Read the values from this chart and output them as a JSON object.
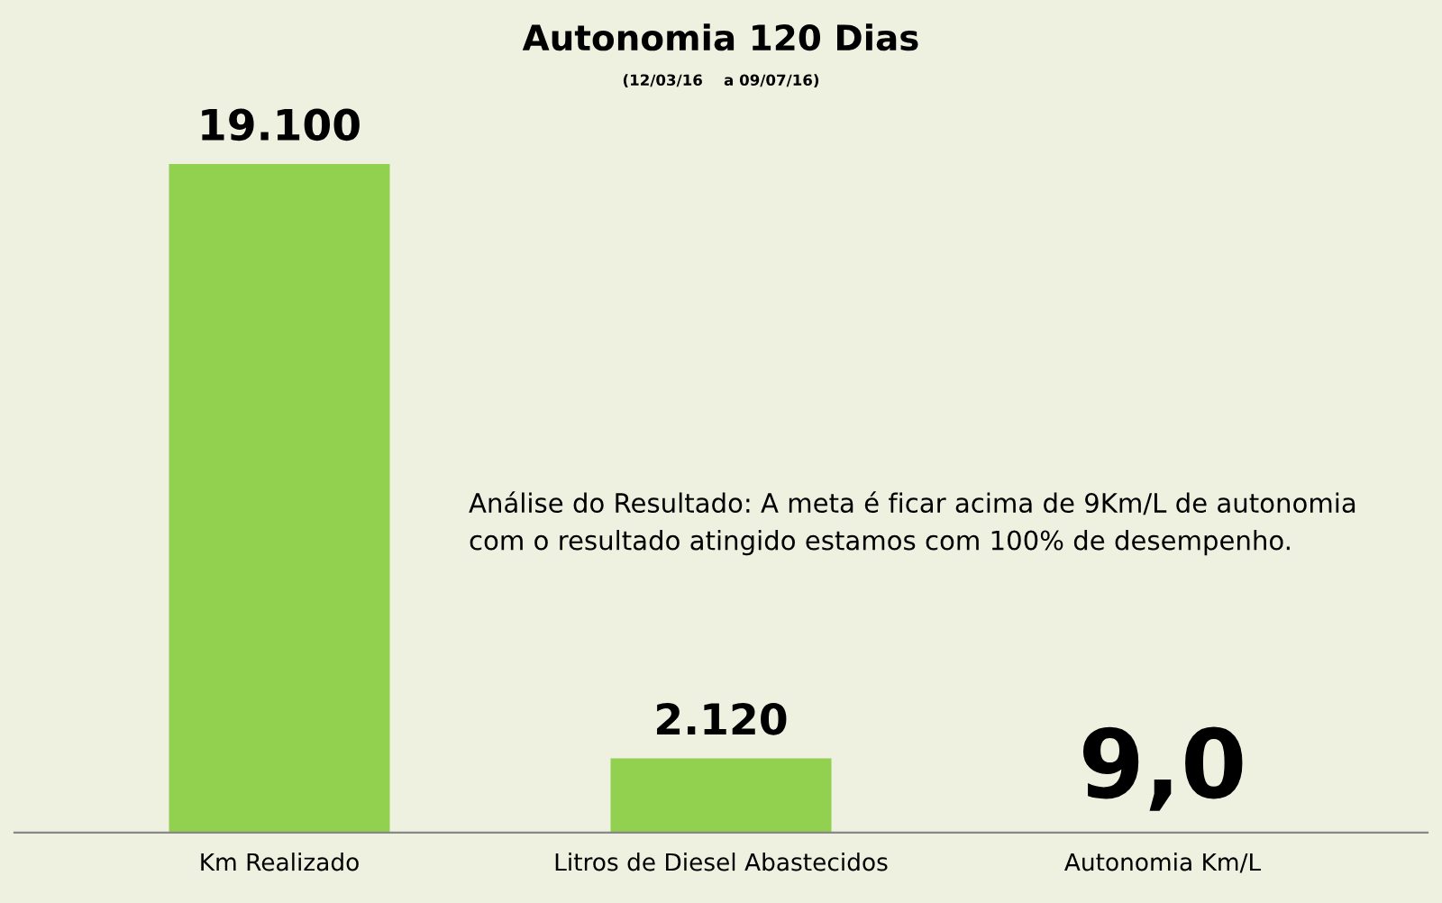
{
  "chart_data": {
    "type": "bar",
    "title": "Autonomia 120 Dias",
    "subtitle": "(12/03/16    a 09/07/16)",
    "categories": [
      "Km Realizado",
      "Litros de Diesel Abastecidos",
      "Autonomia Km/L"
    ],
    "values": [
      19100,
      2120,
      9
    ],
    "color": "#92d050",
    "value_labels": [
      "19.100",
      "2.120",
      "9,0"
    ],
    "annotations": [
      "Análise do Resultado: A meta é ficar acima de 9Km/L de autonomia\ncom o resultado atingido estamos com 100% de desempenho."
    ],
    "grid": false,
    "legend": false
  }
}
